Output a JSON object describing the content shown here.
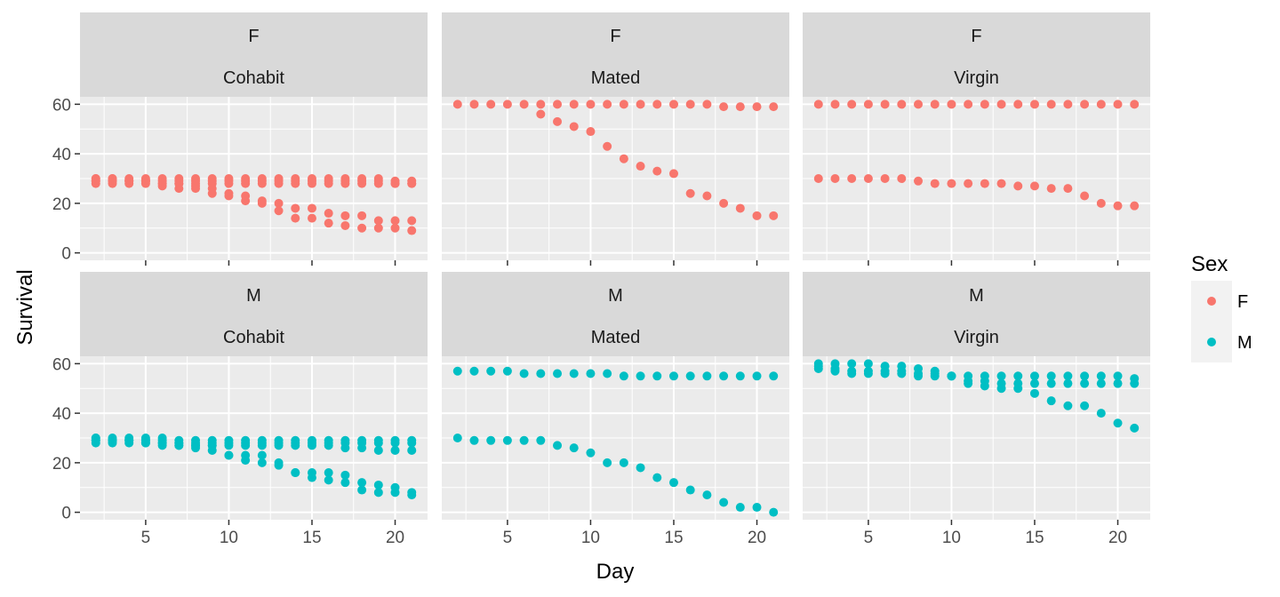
{
  "chart_data": {
    "type": "scatter",
    "xlabel": "Day",
    "ylabel": "Survival",
    "xlim": [
      1.05,
      21.95
    ],
    "ylim": [
      -3,
      63
    ],
    "x_ticks": [
      5,
      10,
      15,
      20
    ],
    "y_ticks": [
      0,
      20,
      40,
      60
    ],
    "grid": true,
    "legend": {
      "title": "Sex",
      "placement": "right",
      "entries": [
        {
          "label": "F",
          "color": "#F8766D"
        },
        {
          "label": "M",
          "color": "#00BFC4"
        }
      ]
    },
    "colors": {
      "F": "#F8766D",
      "M": "#00BFC4"
    },
    "panels": [
      {
        "row": 0,
        "col": 0,
        "sex_label": "F",
        "treatment": "Cohabit",
        "color_key": "F",
        "series": [
          {
            "x": [
              2,
              3,
              4,
              5,
              6,
              7,
              8,
              9,
              10,
              11,
              12,
              13,
              14,
              15,
              16,
              17,
              18,
              19,
              20,
              21
            ],
            "y": [
              30,
              30,
              30,
              30,
              30,
              30,
              30,
              30,
              30,
              30,
              30,
              30,
              30,
              30,
              30,
              30,
              30,
              30,
              29,
              29
            ]
          },
          {
            "x": [
              2,
              3,
              4,
              5,
              6,
              7,
              8,
              9,
              10,
              11,
              12,
              13,
              14,
              15,
              16,
              17,
              18,
              19,
              20,
              21
            ],
            "y": [
              29,
              29,
              29,
              29,
              29,
              29,
              29,
              29,
              29,
              29,
              29,
              29,
              29,
              29,
              29,
              29,
              29,
              29,
              28,
              28
            ]
          },
          {
            "x": [
              2,
              3,
              4,
              5,
              6,
              7,
              8,
              9,
              10,
              11,
              12,
              13,
              14,
              15,
              16,
              17,
              18,
              19,
              20,
              21
            ],
            "y": [
              28,
              28,
              28,
              28,
              28,
              28,
              28,
              28,
              28,
              28,
              28,
              28,
              28,
              28,
              28,
              28,
              28,
              28,
              28,
              28
            ]
          },
          {
            "x": [
              2,
              3,
              4,
              5,
              6,
              7,
              8,
              9,
              10,
              11,
              12,
              13,
              14,
              15,
              16,
              17,
              18,
              19,
              20,
              21
            ],
            "y": [
              30,
              30,
              29,
              29,
              28,
              28,
              27,
              26,
              24,
              23,
              21,
              20,
              18,
              18,
              16,
              15,
              15,
              13,
              13,
              13
            ]
          },
          {
            "x": [
              2,
              3,
              4,
              5,
              6,
              7,
              8,
              9,
              10,
              11,
              12,
              13,
              14,
              15,
              16,
              17,
              18,
              19,
              20,
              21
            ],
            "y": [
              29,
              29,
              29,
              29,
              27,
              26,
              26,
              24,
              23,
              21,
              20,
              17,
              14,
              14,
              12,
              11,
              10,
              10,
              10,
              9
            ]
          }
        ]
      },
      {
        "row": 0,
        "col": 1,
        "sex_label": "F",
        "treatment": "Mated",
        "color_key": "F",
        "series": [
          {
            "x": [
              2,
              3,
              4,
              5,
              6,
              7,
              8,
              9,
              10,
              11,
              12,
              13,
              14,
              15,
              16,
              17,
              18,
              19,
              20,
              21
            ],
            "y": [
              60,
              60,
              60,
              60,
              60,
              60,
              60,
              60,
              60,
              60,
              60,
              60,
              60,
              60,
              60,
              60,
              59,
              59,
              59,
              59
            ]
          },
          {
            "x": [
              7,
              8,
              9,
              10,
              11,
              12,
              13,
              14,
              15,
              16,
              17,
              18,
              19,
              20,
              21
            ],
            "y": [
              56,
              53,
              51,
              49,
              43,
              38,
              35,
              33,
              32,
              24,
              23,
              20,
              18,
              15,
              15
            ]
          }
        ]
      },
      {
        "row": 0,
        "col": 2,
        "sex_label": "F",
        "treatment": "Virgin",
        "color_key": "F",
        "series": [
          {
            "x": [
              2,
              3,
              4,
              5,
              6,
              7,
              8,
              9,
              10,
              11,
              12,
              13,
              14,
              15,
              16,
              17,
              18,
              19,
              20,
              21
            ],
            "y": [
              60,
              60,
              60,
              60,
              60,
              60,
              60,
              60,
              60,
              60,
              60,
              60,
              60,
              60,
              60,
              60,
              60,
              60,
              60,
              60
            ]
          },
          {
            "x": [
              2,
              3,
              4,
              5,
              6,
              7,
              8,
              9,
              10,
              11,
              12,
              13,
              14,
              15,
              16,
              17,
              18,
              19,
              20,
              21
            ],
            "y": [
              30,
              30,
              30,
              30,
              30,
              30,
              29,
              28,
              28,
              28,
              28,
              28,
              27,
              27,
              26,
              26,
              23,
              20,
              19,
              19
            ]
          }
        ]
      },
      {
        "row": 1,
        "col": 0,
        "sex_label": "M",
        "treatment": "Cohabit",
        "color_key": "M",
        "series": [
          {
            "x": [
              2,
              3,
              4,
              5,
              6,
              7,
              8,
              9,
              10,
              11,
              12,
              13,
              14,
              15,
              16,
              17,
              18,
              19,
              20,
              21
            ],
            "y": [
              30,
              30,
              30,
              30,
              30,
              29,
              29,
              29,
              29,
              29,
              29,
              29,
              29,
              29,
              29,
              29,
              29,
              29,
              29,
              29
            ]
          },
          {
            "x": [
              2,
              3,
              4,
              5,
              6,
              7,
              8,
              9,
              10,
              11,
              12,
              13,
              14,
              15,
              16,
              17,
              18,
              19,
              20,
              21
            ],
            "y": [
              29,
              29,
              29,
              29,
              29,
              28,
              28,
              28,
              28,
              28,
              28,
              28,
              28,
              28,
              28,
              28,
              28,
              28,
              28,
              28
            ]
          },
          {
            "x": [
              2,
              3,
              4,
              5,
              6,
              7,
              8,
              9,
              10,
              11,
              12,
              13,
              14,
              15,
              16,
              17,
              18,
              19,
              20,
              21
            ],
            "y": [
              28,
              28,
              28,
              28,
              28,
              27,
              27,
              27,
              27,
              27,
              27,
              27,
              27,
              27,
              27,
              26,
              26,
              25,
              25,
              25
            ]
          },
          {
            "x": [
              2,
              3,
              4,
              5,
              6,
              7,
              8,
              9,
              10,
              11,
              12,
              13,
              14,
              15,
              16,
              17,
              18,
              19,
              20,
              21
            ],
            "y": [
              30,
              29,
              29,
              29,
              28,
              28,
              27,
              27,
              23,
              23,
              23,
              20,
              16,
              16,
              16,
              15,
              12,
              11,
              10,
              8
            ]
          },
          {
            "x": [
              2,
              3,
              4,
              5,
              6,
              7,
              8,
              9,
              10,
              11,
              12,
              13,
              14,
              15,
              16,
              17,
              18,
              19,
              20,
              21
            ],
            "y": [
              29,
              29,
              29,
              28,
              27,
              27,
              26,
              25,
              23,
              21,
              20,
              19,
              16,
              14,
              13,
              12,
              9,
              8,
              8,
              7
            ]
          }
        ]
      },
      {
        "row": 1,
        "col": 1,
        "sex_label": "M",
        "treatment": "Mated",
        "color_key": "M",
        "series": [
          {
            "x": [
              2,
              3,
              4,
              5,
              6,
              7,
              8,
              9,
              10,
              11,
              12,
              13,
              14,
              15,
              16,
              17,
              18,
              19,
              20,
              21
            ],
            "y": [
              57,
              57,
              57,
              57,
              56,
              56,
              56,
              56,
              56,
              56,
              55,
              55,
              55,
              55,
              55,
              55,
              55,
              55,
              55,
              55
            ]
          },
          {
            "x": [
              2,
              3,
              4,
              5,
              6,
              7,
              8,
              9,
              10,
              11,
              12,
              13,
              14,
              15,
              16,
              17,
              18,
              19,
              20,
              21
            ],
            "y": [
              30,
              29,
              29,
              29,
              29,
              29,
              27,
              26,
              24,
              20,
              20,
              18,
              14,
              12,
              9,
              7,
              4,
              2,
              2,
              0
            ]
          }
        ]
      },
      {
        "row": 1,
        "col": 2,
        "sex_label": "M",
        "treatment": "Virgin",
        "color_key": "M",
        "series": [
          {
            "x": [
              2,
              3,
              4,
              5,
              6,
              7,
              8,
              9,
              10,
              11,
              12,
              13,
              14,
              15,
              16,
              17,
              18,
              19,
              20,
              21
            ],
            "y": [
              60,
              60,
              60,
              60,
              59,
              59,
              58,
              57,
              55,
              55,
              55,
              55,
              55,
              55,
              55,
              55,
              55,
              55,
              55,
              54
            ]
          },
          {
            "x": [
              2,
              3,
              4,
              5,
              6,
              7,
              8,
              9,
              10,
              11,
              12,
              13,
              14,
              15,
              16,
              17,
              18,
              19,
              20,
              21
            ],
            "y": [
              59,
              58,
              57,
              57,
              57,
              57,
              56,
              56,
              55,
              53,
              53,
              52,
              52,
              52,
              52,
              52,
              52,
              52,
              52,
              52
            ]
          },
          {
            "x": [
              2,
              3,
              4,
              5,
              6,
              7,
              8,
              9,
              10,
              11,
              12,
              13,
              14,
              15,
              16,
              17,
              18,
              19,
              20,
              21
            ],
            "y": [
              58,
              57,
              56,
              56,
              56,
              56,
              55,
              55,
              55,
              52,
              51,
              50,
              50,
              48,
              45,
              43,
              43,
              40,
              36,
              34
            ]
          }
        ]
      }
    ]
  }
}
